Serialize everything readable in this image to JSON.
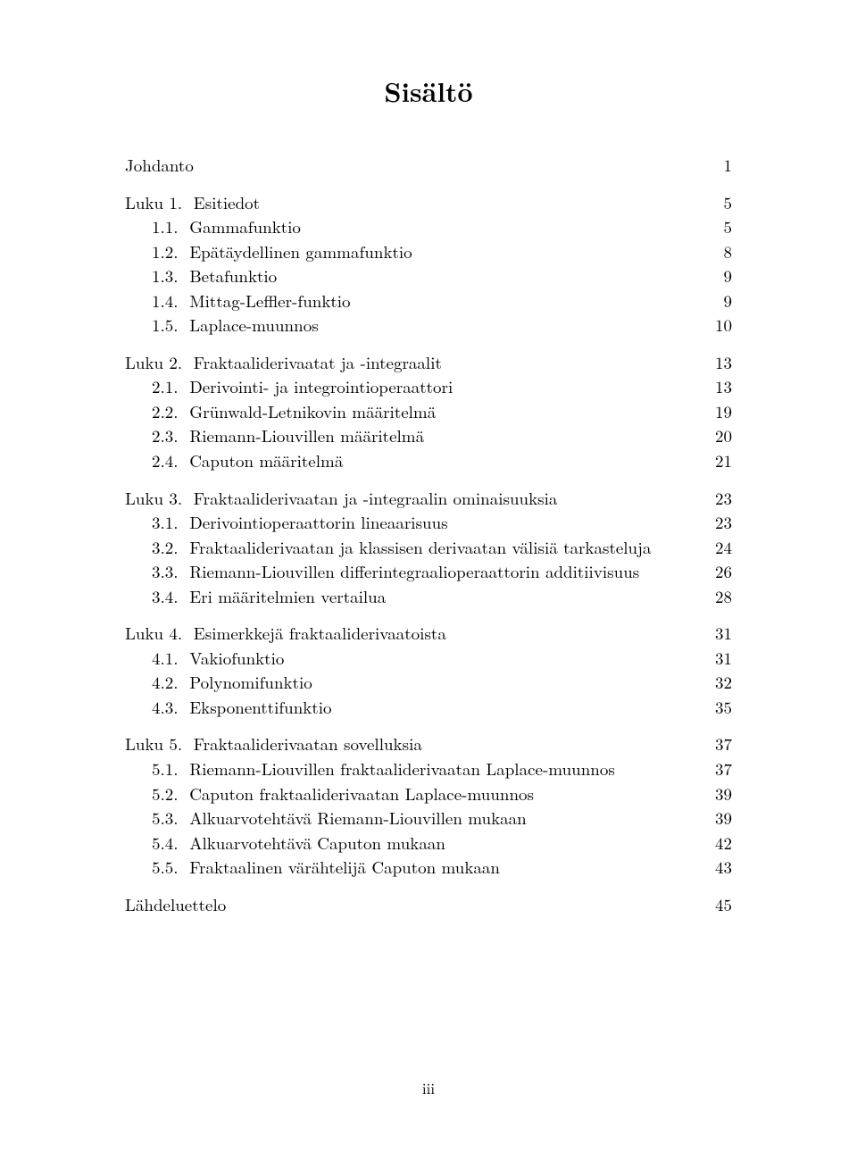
{
  "title": "Sisältö",
  "page_number": "iii",
  "toc": [
    {
      "kind": "chapter",
      "label": "Johdanto",
      "page": "1"
    },
    {
      "kind": "chapter",
      "label": "Luku 1.  Esitiedot",
      "page": "5"
    },
    {
      "kind": "section",
      "label": "1.1.  Gammafunktio",
      "page": "5"
    },
    {
      "kind": "section",
      "label": "1.2.  Epätäydellinen gammafunktio",
      "page": "8"
    },
    {
      "kind": "section",
      "label": "1.3.  Betafunktio",
      "page": "9"
    },
    {
      "kind": "section",
      "label": "1.4.  Mittag-Leffler-funktio",
      "page": "9"
    },
    {
      "kind": "section",
      "label": "1.5.  Laplace-muunnos",
      "page": "10"
    },
    {
      "kind": "chapter",
      "label": "Luku 2.  Fraktaaliderivaatat ja -integraalit",
      "page": "13"
    },
    {
      "kind": "section",
      "label": "2.1.  Derivointi- ja integrointioperaattori",
      "page": "13"
    },
    {
      "kind": "section",
      "label": "2.2.  Grünwald-Letnikovin määritelmä",
      "page": "19"
    },
    {
      "kind": "section",
      "label": "2.3.  Riemann-Liouvillen määritelmä",
      "page": "20"
    },
    {
      "kind": "section",
      "label": "2.4.  Caputon määritelmä",
      "page": "21"
    },
    {
      "kind": "chapter",
      "label": "Luku 3.  Fraktaaliderivaatan ja -integraalin ominaisuuksia",
      "page": "23"
    },
    {
      "kind": "section",
      "label": "3.1.  Derivointioperaattorin lineaarisuus",
      "page": "23"
    },
    {
      "kind": "section",
      "label": "3.2.  Fraktaaliderivaatan ja klassisen derivaatan välisiä tarkasteluja",
      "page": "24"
    },
    {
      "kind": "section",
      "label": "3.3.  Riemann-Liouvillen differintegraalioperaattorin additiivisuus",
      "page": "26"
    },
    {
      "kind": "section",
      "label": "3.4.  Eri määritelmien vertailua",
      "page": "28"
    },
    {
      "kind": "chapter",
      "label": "Luku 4.  Esimerkkejä fraktaaliderivaatoista",
      "page": "31"
    },
    {
      "kind": "section",
      "label": "4.1.  Vakiofunktio",
      "page": "31"
    },
    {
      "kind": "section",
      "label": "4.2.  Polynomifunktio",
      "page": "32"
    },
    {
      "kind": "section",
      "label": "4.3.  Eksponenttifunktio",
      "page": "35"
    },
    {
      "kind": "chapter",
      "label": "Luku 5.  Fraktaaliderivaatan sovelluksia",
      "page": "37"
    },
    {
      "kind": "section",
      "label": "5.1.  Riemann-Liouvillen fraktaaliderivaatan Laplace-muunnos",
      "page": "37"
    },
    {
      "kind": "section",
      "label": "5.2.  Caputon fraktaaliderivaatan Laplace-muunnos",
      "page": "39"
    },
    {
      "kind": "section",
      "label": "5.3.  Alkuarvotehtävä Riemann-Liouvillen mukaan",
      "page": "39"
    },
    {
      "kind": "section",
      "label": "5.4.  Alkuarvotehtävä Caputon mukaan",
      "page": "42"
    },
    {
      "kind": "section",
      "label": "5.5.  Fraktaalinen värähtelijä Caputon mukaan",
      "page": "43"
    },
    {
      "kind": "chapter",
      "label": "Lähdeluettelo",
      "page": "45"
    }
  ]
}
